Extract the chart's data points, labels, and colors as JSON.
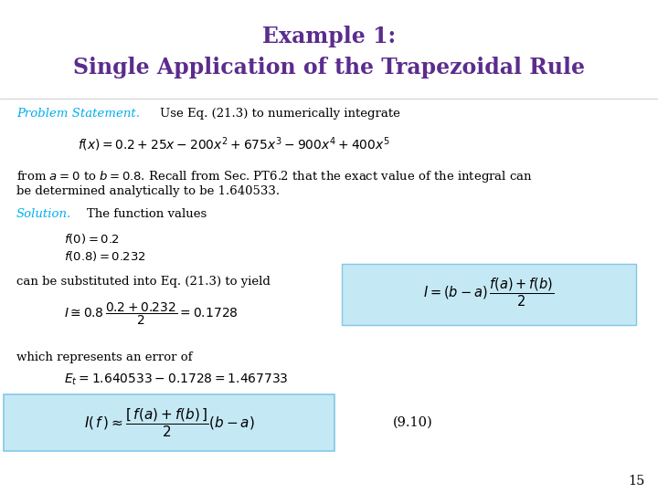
{
  "title_line1": "Example 1:",
  "title_line2": "Single Application of the Trapezoidal Rule",
  "title_color": "#5B2C8D",
  "title_fontsize": 17,
  "cyan_color": "#00AEEF",
  "body_color": "#000000",
  "body_fontsize": 9.5,
  "page_number": "15",
  "background_color": "#FFFFFF",
  "box_color": "#C5E8F5",
  "bottom_box_color": "#C5E8F5"
}
